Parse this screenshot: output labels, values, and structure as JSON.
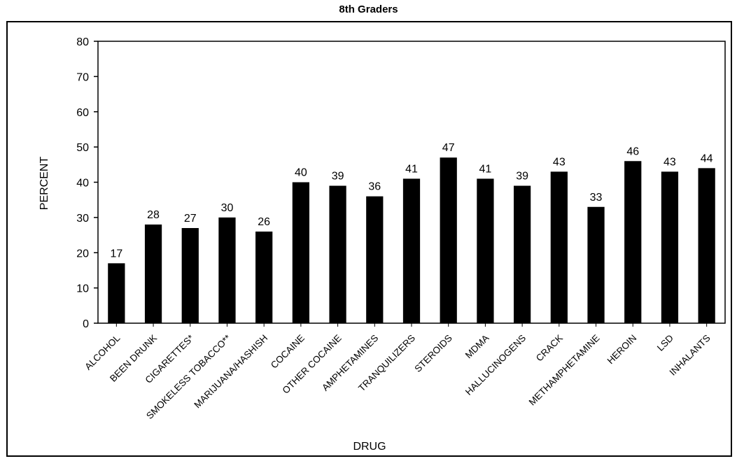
{
  "chart_data": {
    "type": "bar",
    "title": "8th Graders",
    "xlabel": "DRUG",
    "ylabel": "PERCENT",
    "ylim": [
      0,
      80
    ],
    "yticks": [
      0,
      10,
      20,
      30,
      40,
      50,
      60,
      70,
      80
    ],
    "categories": [
      "ALCOHOL",
      "BEEN DRUNK",
      "CIGARETTES*",
      "SMOKELESS TOBACCO**",
      "MARIJUANA/HASHISH",
      "COCAINE",
      "OTHER COCAINE",
      "AMPHETAMINES",
      "TRANQUILIZERS",
      "STEROIDS",
      "MDMA",
      "HALLUCINOGENS",
      "CRACK",
      "METHAMPHETAMINE",
      "HEROIN",
      "LSD",
      "INHALANTS"
    ],
    "values": [
      17,
      28,
      27,
      30,
      26,
      40,
      39,
      36,
      41,
      47,
      41,
      39,
      43,
      33,
      46,
      43,
      44
    ],
    "bar_color": "#000000",
    "grid": false,
    "legend": "none"
  }
}
